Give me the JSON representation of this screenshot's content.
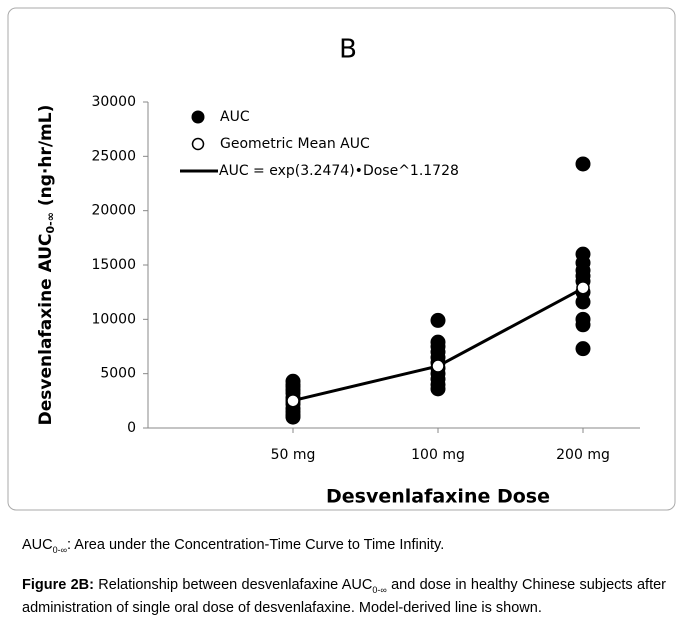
{
  "chart_data": {
    "type": "scatter",
    "title": "B",
    "categories": [
      "50 mg",
      "100 mg",
      "200 mg"
    ],
    "series": [
      {
        "name": "AUC",
        "color": "#000000",
        "marker": "filled",
        "values": [
          [
            4300,
            4000,
            3800,
            3500,
            3200,
            2800,
            2500,
            2200,
            1800,
            1500,
            1200,
            1000
          ],
          [
            9900,
            7900,
            7500,
            7000,
            6500,
            6000,
            5500,
            5000,
            4500,
            4000,
            3600
          ],
          [
            24300,
            16000,
            15200,
            14500,
            14000,
            13500,
            12500,
            11600,
            10000,
            9500,
            7300
          ]
        ]
      },
      {
        "name": "Geometric Mean AUC",
        "color": "#000000",
        "marker": "hollow",
        "values": [
          2500,
          5700,
          12900
        ]
      },
      {
        "name": "AUC = exp(3.2474)•Dose^1.1728",
        "color": "#000000",
        "marker": "line",
        "values": [
          2528,
          5700,
          12852
        ]
      }
    ],
    "ylim": [
      0,
      30000
    ],
    "yticks": [
      0,
      5000,
      10000,
      15000,
      20000,
      25000,
      30000
    ],
    "x_label": "Desvenlafaxine Dose",
    "y_label": [
      "Desvenlafaxine AUC",
      "0-∞",
      " (ng·hr/mL)"
    ],
    "legend": "top-left"
  },
  "caption": {
    "note": [
      "AUC",
      "0-∞",
      ": Area under the Concentration-Time Curve to Time Infinity."
    ],
    "figure_label": "Figure 2B:",
    "text": [
      " Relationship between desvenlafaxine AUC",
      "0-∞",
      " and dose in healthy Chinese subjects after administration of single oral dose of desvenlafaxine. Model-derived line is shown."
    ]
  }
}
